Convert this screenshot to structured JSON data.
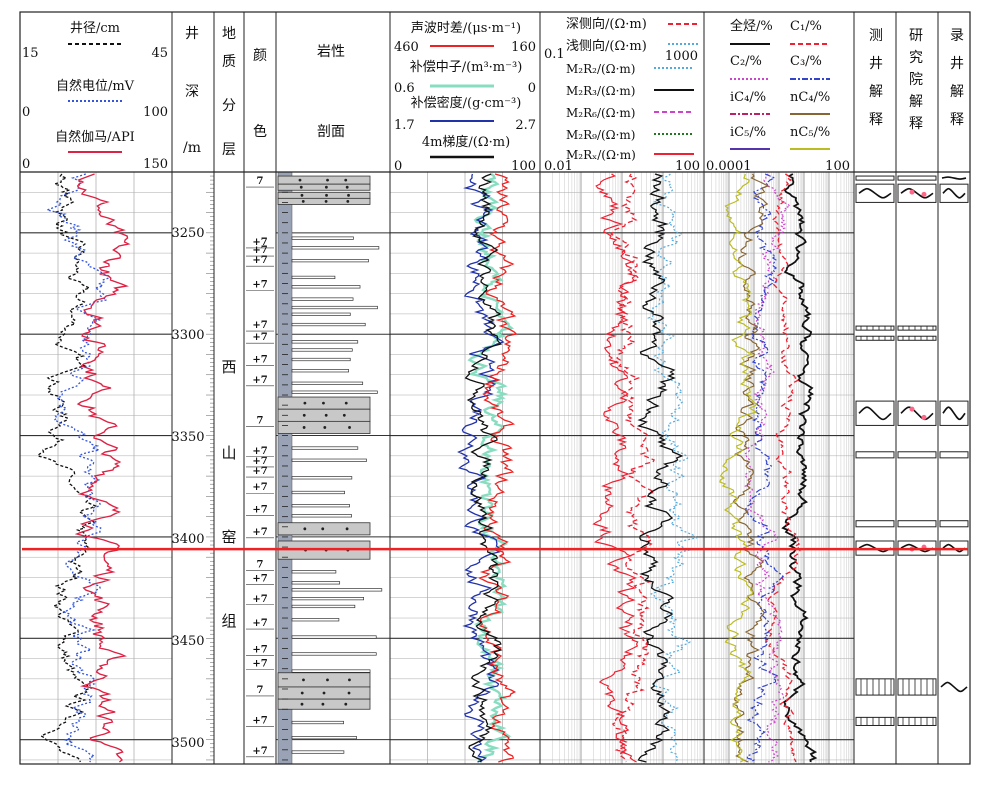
{
  "header": {
    "logs_left": {
      "caliper": {
        "name": "井径/cm",
        "min": "15",
        "max": "45",
        "color": "#111111",
        "dash": "4,3"
      },
      "sp": {
        "name": "自然电位/mV",
        "min": "0",
        "max": "100",
        "color": "#3355dd",
        "dash": "2,2"
      },
      "gr": {
        "name": "自然伽马/API",
        "min": "0",
        "max": "150",
        "color": "#dd2244",
        "dash": ""
      }
    },
    "depth_label": [
      "井",
      "深",
      "/m"
    ],
    "strat_label": [
      "地",
      "质",
      "分",
      "层"
    ],
    "color_label": [
      "颜",
      "色"
    ],
    "lith_label": [
      "岩性",
      "剖面"
    ],
    "logs_mid": {
      "ac": {
        "name": "声波时差/(μs·m⁻¹)",
        "min": "460",
        "max": "160",
        "color": "#ee2222"
      },
      "cnl": {
        "name": "补偿中子/(m³·m⁻³)",
        "min": "0.6",
        "max": "0",
        "color": "#88ddc0"
      },
      "den": {
        "name": "补偿密度/(g·cm⁻³)",
        "min": "1.7",
        "max": "2.7",
        "color": "#2233aa"
      },
      "r4": {
        "name": "4m梯度/(Ω·m)",
        "min": "0",
        "max": "100",
        "color": "#111111"
      }
    },
    "logs_res": {
      "scale_min": "0.01",
      "scale_top": "0.1",
      "scale_mid": "1000",
      "scale_max": "100",
      "deep": {
        "name": "深侧向/(Ω·m)",
        "color": "#ee2233",
        "dash": "5,3"
      },
      "shallow": {
        "name": "浅侧向/(Ω·m)",
        "color": "#55aadd",
        "dash": "2,2"
      },
      "m2r2": {
        "name": "M₂R₂/(Ω·m)",
        "color": "#55aadd",
        "dash": "2,2"
      },
      "m2r3": {
        "name": "M₂R₃/(Ω·m)",
        "color": "#111111",
        "dash": ""
      },
      "m2r6": {
        "name": "M₂R₆/(Ω·m)",
        "color": "#cc44cc",
        "dash": "5,3"
      },
      "m2r9": {
        "name": "M₂R₉/(Ω·m)",
        "color": "#227722",
        "dash": "2,2"
      },
      "m2rx": {
        "name": "M₂Rₓ/(Ω·m)",
        "color": "#ee2233",
        "dash": ""
      }
    },
    "logs_gas": {
      "scale_min": "0.0001",
      "scale_max": "100",
      "total": {
        "name": "全烃/%",
        "color": "#111111",
        "dash": ""
      },
      "c1": {
        "name": "C₁/%",
        "color": "#ee2233",
        "dash": "5,3"
      },
      "c2": {
        "name": "C₂/%",
        "color": "#cc44cc",
        "dash": "2,2"
      },
      "c3": {
        "name": "C₃/%",
        "color": "#3344cc",
        "dash": "6,2,2,2"
      },
      "ic4": {
        "name": "iC₄/%",
        "color": "#bb2266",
        "dash": "6,2,2,2"
      },
      "nc4": {
        "name": "nC₄/%",
        "color": "#886633",
        "dash": ""
      },
      "ic5": {
        "name": "iC₅/%",
        "color": "#5533aa",
        "dash": ""
      },
      "nc5": {
        "name": "nC₅/%",
        "color": "#bbbb22",
        "dash": ""
      }
    },
    "interp": [
      [
        "测",
        "井",
        "解",
        "释"
      ],
      [
        "研",
        "究",
        "院",
        "解",
        "释"
      ],
      [
        "录",
        "井",
        "解",
        "释"
      ]
    ]
  },
  "depth": {
    "min": 3220,
    "max": 3512,
    "labels": [
      "3250",
      "3300",
      "3350",
      "3400",
      "3450",
      "3500"
    ],
    "values": [
      3250,
      3300,
      3350,
      3400,
      3450,
      3500
    ]
  },
  "formation": [
    "西",
    "山",
    "窑",
    "组"
  ],
  "boundary_depth": 3406,
  "boundary_color": "#ee2222",
  "color_codes": [
    {
      "d": 3224,
      "t": "7"
    },
    {
      "d": 3254,
      "t": "+7"
    },
    {
      "d": 3258,
      "t": "+7"
    },
    {
      "d": 3263,
      "t": "+7"
    },
    {
      "d": 3275,
      "t": "+7"
    },
    {
      "d": 3295,
      "t": "+7"
    },
    {
      "d": 3301,
      "t": "+7"
    },
    {
      "d": 3312,
      "t": "+7"
    },
    {
      "d": 3322,
      "t": "+7"
    },
    {
      "d": 3342,
      "t": "7"
    },
    {
      "d": 3357,
      "t": "+7"
    },
    {
      "d": 3362,
      "t": "+7"
    },
    {
      "d": 3367,
      "t": "+7"
    },
    {
      "d": 3375,
      "t": "+7"
    },
    {
      "d": 3386,
      "t": "+7"
    },
    {
      "d": 3397,
      "t": "+7"
    },
    {
      "d": 3413,
      "t": "7"
    },
    {
      "d": 3420,
      "t": "+7"
    },
    {
      "d": 3430,
      "t": "+7"
    },
    {
      "d": 3442,
      "t": "+7"
    },
    {
      "d": 3455,
      "t": "+7"
    },
    {
      "d": 3462,
      "t": "+7"
    },
    {
      "d": 3475,
      "t": "7"
    },
    {
      "d": 3490,
      "t": "+7"
    },
    {
      "d": 3505,
      "t": "+7"
    }
  ],
  "colors": {
    "gray_bar": "#9aa3b5",
    "sand": "#c8c8c8",
    "grid": "#888888",
    "frame": "#222222"
  }
}
